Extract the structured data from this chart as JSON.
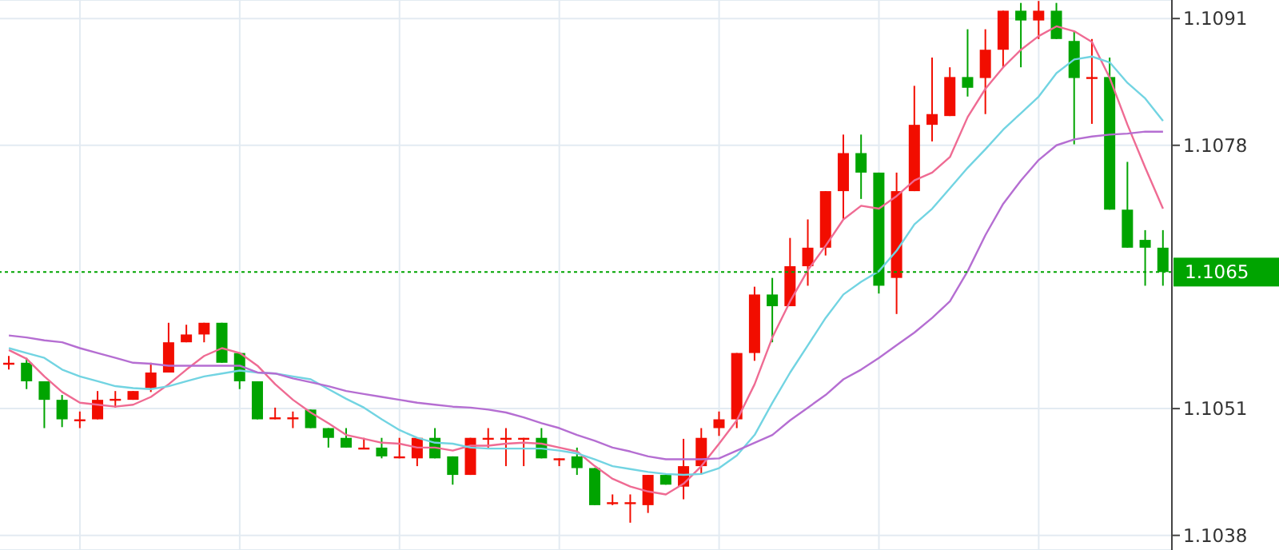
{
  "chart_data": {
    "type": "candlestick",
    "categories": [
      null,
      null,
      null,
      null,
      null,
      null,
      null,
      null,
      null,
      null,
      null,
      null,
      null,
      null,
      null,
      null,
      null,
      null,
      null,
      null,
      null,
      null,
      null,
      null,
      null,
      null,
      null,
      null,
      null,
      null,
      null,
      null,
      null,
      null,
      null,
      null,
      null,
      null,
      null,
      null,
      null,
      null,
      null,
      null,
      null,
      null,
      null,
      null,
      null,
      null,
      null,
      null,
      null,
      null,
      null,
      null,
      null,
      null,
      null,
      null,
      null,
      null,
      null,
      null,
      null,
      null
    ],
    "ohlc": [
      [
        1.10555,
        1.10564,
        1.1055,
        1.10557
      ],
      [
        1.10557,
        1.10562,
        1.1053,
        1.10538
      ],
      [
        1.10538,
        1.10538,
        1.1049,
        1.10519
      ],
      [
        1.10519,
        1.10524,
        1.10491,
        1.10499
      ],
      [
        1.10499,
        1.10507,
        1.1049,
        1.10499
      ],
      [
        1.10499,
        1.10528,
        1.10499,
        1.10519
      ],
      [
        1.1052,
        1.10528,
        1.10511,
        1.1052
      ],
      [
        1.10519,
        1.10528,
        1.10519,
        1.10528
      ],
      [
        1.10531,
        1.10557,
        1.10527,
        1.10547
      ],
      [
        1.10547,
        1.10598,
        1.10547,
        1.10578
      ],
      [
        1.10578,
        1.10596,
        1.10578,
        1.10586
      ],
      [
        1.10586,
        1.10598,
        1.10578,
        1.10598
      ],
      [
        1.10598,
        1.10598,
        1.10557,
        1.10557
      ],
      [
        1.10567,
        1.10567,
        1.1053,
        1.10538
      ],
      [
        1.10538,
        1.10538,
        1.10499,
        1.10499
      ],
      [
        1.10501,
        1.10511,
        1.10499,
        1.10501
      ],
      [
        1.10501,
        1.10507,
        1.1049,
        1.10501
      ],
      [
        1.10509,
        1.10509,
        1.1049,
        1.1049
      ],
      [
        1.1049,
        1.1049,
        1.1047,
        1.1048
      ],
      [
        1.1048,
        1.1049,
        1.1047,
        1.1047
      ],
      [
        1.1047,
        1.1048,
        1.10469,
        1.1047
      ],
      [
        1.1047,
        1.1048,
        1.10459,
        1.10461
      ],
      [
        1.10461,
        1.1048,
        1.10459,
        1.10461
      ],
      [
        1.10459,
        1.1048,
        1.10451,
        1.1048
      ],
      [
        1.1048,
        1.1049,
        1.10459,
        1.10459
      ],
      [
        1.10461,
        1.10461,
        1.10432,
        1.10442
      ],
      [
        1.10442,
        1.1048,
        1.10442,
        1.1048
      ],
      [
        1.1048,
        1.1049,
        1.1047,
        1.1048
      ],
      [
        1.1048,
        1.1049,
        1.10451,
        1.1048
      ],
      [
        1.1048,
        1.1048,
        1.10451,
        1.1048
      ],
      [
        1.1048,
        1.1049,
        1.10459,
        1.10459
      ],
      [
        1.10459,
        1.10459,
        1.10451,
        1.10459
      ],
      [
        1.10461,
        1.1047,
        1.10442,
        1.10449
      ],
      [
        1.10449,
        1.10449,
        1.10411,
        1.10411
      ],
      [
        1.10414,
        1.10422,
        1.10411,
        1.10414
      ],
      [
        1.10414,
        1.10422,
        1.10393,
        1.10414
      ],
      [
        1.10411,
        1.10442,
        1.10403,
        1.10442
      ],
      [
        1.10442,
        1.10442,
        1.10432,
        1.10432
      ],
      [
        1.1043,
        1.10479,
        1.10417,
        1.10451
      ],
      [
        1.10451,
        1.1049,
        1.10443,
        1.1048
      ],
      [
        1.1049,
        1.10507,
        1.10482,
        1.10499
      ],
      [
        1.10499,
        1.10567,
        1.1049,
        1.10567
      ],
      [
        1.10567,
        1.10635,
        1.10559,
        1.10627
      ],
      [
        1.10627,
        1.10644,
        1.10578,
        1.10615
      ],
      [
        1.10615,
        1.10685,
        1.10615,
        1.10656
      ],
      [
        1.10656,
        1.10704,
        1.10636,
        1.10675
      ],
      [
        1.10675,
        1.10733,
        1.10667,
        1.10733
      ],
      [
        1.10733,
        1.10791,
        1.10704,
        1.10772
      ],
      [
        1.10772,
        1.10791,
        1.10725,
        1.10752
      ],
      [
        1.10752,
        1.10752,
        1.10628,
        1.10636
      ],
      [
        1.10644,
        1.10752,
        1.10607,
        1.10733
      ],
      [
        1.10733,
        1.10841,
        1.10733,
        1.10801
      ],
      [
        1.10801,
        1.1087,
        1.10784,
        1.10812
      ],
      [
        1.1081,
        1.1086,
        1.1081,
        1.1085
      ],
      [
        1.1085,
        1.10899,
        1.1083,
        1.10839
      ],
      [
        1.10849,
        1.10899,
        1.10812,
        1.10878
      ],
      [
        1.10878,
        1.10918,
        1.1086,
        1.10918
      ],
      [
        1.10918,
        1.10926,
        1.1086,
        1.10908
      ],
      [
        1.10908,
        1.10928,
        1.10889,
        1.10918
      ],
      [
        1.10918,
        1.10926,
        1.10889,
        1.10889
      ],
      [
        1.10887,
        1.10897,
        1.10781,
        1.10849
      ],
      [
        1.1085,
        1.10889,
        1.10802,
        1.1085
      ],
      [
        1.1085,
        1.1087,
        1.10714,
        1.10714
      ],
      [
        1.10714,
        1.10763,
        1.10675,
        1.10675
      ],
      [
        1.10683,
        1.10693,
        1.10636,
        1.10675
      ],
      [
        1.10675,
        1.10693,
        1.10636,
        1.1065
      ]
    ],
    "colors": [
      "#f20d00",
      "#00a400",
      "#00a400",
      "#00a400",
      "#f20d00",
      "#f20d00",
      "#f20d00",
      "#f20d00",
      "#f20d00",
      "#f20d00",
      "#f20d00",
      "#f20d00",
      "#00a400",
      "#00a400",
      "#00a400",
      "#f20d00",
      "#f20d00",
      "#00a400",
      "#00a400",
      "#00a400",
      "#f20d00",
      "#00a400",
      "#f20d00",
      "#f20d00",
      "#00a400",
      "#00a400",
      "#f20d00",
      "#f20d00",
      "#f20d00",
      "#f20d00",
      "#00a400",
      "#f20d00",
      "#00a400",
      "#00a400",
      "#f20d00",
      "#f20d00",
      "#f20d00",
      "#00a400",
      "#f20d00",
      "#f20d00",
      "#f20d00",
      "#f20d00",
      "#f20d00",
      "#00a400",
      "#f20d00",
      "#f20d00",
      "#f20d00",
      "#f20d00",
      "#00a400",
      "#00a400",
      "#f20d00",
      "#f20d00",
      "#f20d00",
      "#f20d00",
      "#00a400",
      "#f20d00",
      "#f20d00",
      "#00a400",
      "#f20d00",
      "#00a400",
      "#00a400",
      "#f20d00",
      "#00a400",
      "#00a400",
      "#00a400",
      "#00a400"
    ],
    "series": [
      {
        "type": "line",
        "color": "#ef6b93",
        "values": [
          1.1057,
          1.10561,
          1.10543,
          1.10527,
          1.10516,
          1.10514,
          1.10512,
          1.10514,
          1.10522,
          1.10535,
          1.1055,
          1.10564,
          1.10572,
          1.10567,
          1.10554,
          1.10535,
          1.10519,
          1.10506,
          1.10495,
          1.10483,
          1.10479,
          1.10475,
          1.10474,
          1.1047,
          1.1047,
          1.10467,
          1.10472,
          1.10472,
          1.10474,
          1.10475,
          1.10474,
          1.1047,
          1.10466,
          1.10451,
          1.10438,
          1.1043,
          1.10425,
          1.10422,
          1.10433,
          1.10451,
          1.10474,
          1.10498,
          1.10535,
          1.10583,
          1.1062,
          1.10652,
          1.10677,
          1.10704,
          1.10718,
          1.10715,
          1.10728,
          1.10744,
          1.10752,
          1.10768,
          1.10809,
          1.10838,
          1.1086,
          1.10878,
          1.10892,
          1.10902,
          1.10897,
          1.10886,
          1.10849,
          1.10801,
          1.10757,
          1.10715
        ]
      },
      {
        "type": "line",
        "color": "#72d4e2",
        "values": [
          1.10572,
          1.10567,
          1.10562,
          1.1055,
          1.10543,
          1.10538,
          1.10533,
          1.10531,
          1.1053,
          1.10533,
          1.10538,
          1.10543,
          1.10546,
          1.10549,
          1.10547,
          1.10546,
          1.10543,
          1.1054,
          1.1053,
          1.1052,
          1.10511,
          1.10499,
          1.10488,
          1.1048,
          1.10475,
          1.10474,
          1.1047,
          1.10469,
          1.10469,
          1.10469,
          1.10469,
          1.10467,
          1.10464,
          1.10458,
          1.10451,
          1.10448,
          1.10445,
          1.10443,
          1.10442,
          1.10443,
          1.10449,
          1.10462,
          1.10483,
          1.10516,
          1.10547,
          1.10575,
          1.10603,
          1.10627,
          1.1064,
          1.10651,
          1.10672,
          1.10699,
          1.10715,
          1.10736,
          1.10757,
          1.10776,
          1.10796,
          1.10813,
          1.1083,
          1.10854,
          1.10868,
          1.10871,
          1.10865,
          1.10844,
          1.10828,
          1.10805
        ]
      },
      {
        "type": "line",
        "color": "#b56ed2",
        "values": [
          1.10585,
          1.10583,
          1.1058,
          1.10578,
          1.10572,
          1.10567,
          1.10562,
          1.10557,
          1.10556,
          1.10554,
          1.10554,
          1.10554,
          1.10554,
          1.10554,
          1.10547,
          1.10546,
          1.10541,
          1.10537,
          1.10533,
          1.10528,
          1.10525,
          1.10522,
          1.10519,
          1.10516,
          1.10514,
          1.10512,
          1.10511,
          1.10509,
          1.10506,
          1.10501,
          1.10495,
          1.1049,
          1.10483,
          1.10477,
          1.1047,
          1.10466,
          1.10461,
          1.10458,
          1.10458,
          1.10458,
          1.10459,
          1.10467,
          1.10475,
          1.10483,
          1.10498,
          1.10511,
          1.10524,
          1.1054,
          1.1055,
          1.10562,
          1.10575,
          1.10588,
          1.10603,
          1.1062,
          1.10651,
          1.10688,
          1.1072,
          1.10744,
          1.10765,
          1.1078,
          1.10786,
          1.10789,
          1.10791,
          1.10792,
          1.10794,
          1.10794
        ]
      }
    ],
    "ylim": [
      1.10365,
      1.10929
    ],
    "yticks": [
      1.1038,
      1.1051,
      1.1078,
      1.1091
    ],
    "tick_labels": "y",
    "grid": true,
    "ref_lines": [
      {
        "axis": "y",
        "value": 1.1065,
        "label": "1.1065",
        "color": "#00a400",
        "line_style": "dotted"
      }
    ]
  }
}
